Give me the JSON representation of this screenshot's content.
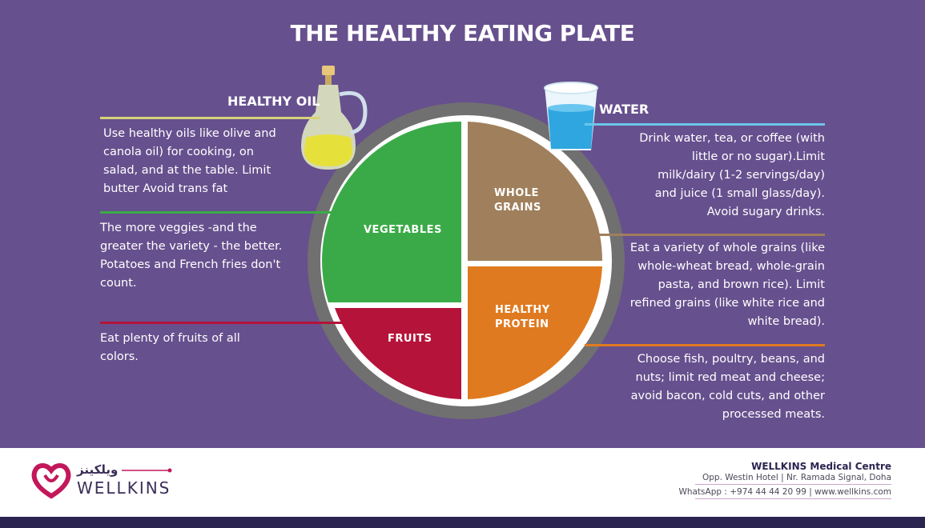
{
  "title": "THE HEALTHY EATING PLATE",
  "oil": {
    "heading": "HEALTHY OIL",
    "lines": [
      "Use healthy oils like olive and",
      "canola oil) for cooking, on",
      "salad, and at the table. Limit",
      "butter Avoid trans fat"
    ]
  },
  "water": {
    "heading": "WATER",
    "lines": [
      "Drink water, tea, or coffee (with",
      "little or no sugar).Limit",
      "milk/dairy (1-2 servings/day)",
      "and juice (1 small glass/day).",
      "Avoid sugary drinks."
    ]
  },
  "vegetables": {
    "label": "VEGETABLES",
    "lines": [
      "The more veggies -and the",
      "greater the variety - the better.",
      "Potatoes and French fries don't",
      "count."
    ]
  },
  "fruits": {
    "label": "FRUITS",
    "lines": [
      "Eat plenty of fruits of all",
      "colors."
    ]
  },
  "grains": {
    "label_1": "WHOLE",
    "label_2": "GRAINS",
    "lines": [
      "Eat a variety of whole grains (like",
      "whole-wheat bread, whole-grain",
      "pasta, and brown rice). Limit",
      "refined grains (like white rice and",
      "white bread)."
    ]
  },
  "protein": {
    "label_1": "HEALTHY",
    "label_2": "PROTEIN",
    "lines": [
      "Choose fish, poultry, beans, and",
      "nuts; limit red meat and cheese;",
      "avoid bacon, cold cuts, and other",
      "processed meats."
    ]
  },
  "colors": {
    "background": "#67508e",
    "vegetables": "#3aaa48",
    "fruits": "#b5133a",
    "grains": "#a07f5c",
    "protein": "#e07a20",
    "plate_rim": "#707070",
    "oil_line": "#d8d27a",
    "water_line": "#6cc6ea"
  },
  "footer": {
    "logo_arabic": "ويلكينز",
    "logo_text": "WELLKINS",
    "centre_name": "WELLKINS Medical Centre",
    "address": "Opp. Westin Hotel | Nr. Ramada Signal, Doha",
    "contact": "WhatsApp : +974 44 44 20 99 | www.wellkins.com"
  }
}
